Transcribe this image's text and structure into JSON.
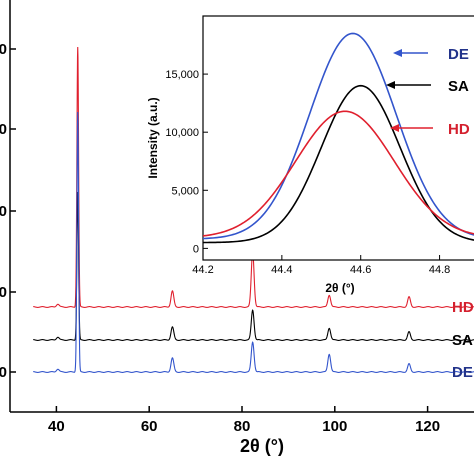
{
  "chart_data": [
    {
      "type": "line",
      "xlabel": "2θ (°)",
      "xlim": [
        30,
        130
      ],
      "x_ticks": [
        "40",
        "60",
        "80",
        "100",
        "120"
      ],
      "x_tick_values": [
        40,
        60,
        80,
        100,
        120
      ],
      "y_tick_fragments": [
        "0",
        "0",
        "0",
        "0",
        "0"
      ],
      "peaks": [
        40.3,
        44.6,
        65.0,
        82.3,
        98.8,
        116.0
      ],
      "series": [
        {
          "name": "HD",
          "color": "#e0202e",
          "offset": 1,
          "heights": [
            3,
            260,
            16,
            55,
            12,
            10
          ]
        },
        {
          "name": "SA",
          "color": "#000000",
          "offset": 0.5,
          "heights": [
            3,
            148,
            13,
            30,
            12,
            8
          ]
        },
        {
          "name": "DE",
          "color": "#3355cc",
          "offset": 0,
          "heights": [
            3,
            260,
            14,
            30,
            18,
            8
          ]
        }
      ],
      "grid": false
    },
    {
      "type": "line",
      "inset": true,
      "xlabel": "2θ (°)",
      "ylabel": "Intensity (a.u.)",
      "xlim": [
        44.2,
        44.9
      ],
      "ylim": [
        -1000,
        20000
      ],
      "x_ticks": [
        "44.2",
        "44.4",
        "44.6",
        "44.8"
      ],
      "x_tick_values": [
        44.2,
        44.4,
        44.6,
        44.8
      ],
      "y_ticks": [
        "0",
        "5,000",
        "10,000",
        "15,000"
      ],
      "y_tick_values": [
        0,
        5000,
        10000,
        15000
      ],
      "series": [
        {
          "name": "DE",
          "color": "#3355cc",
          "peak_x": 44.58,
          "peak_y": 18500,
          "width": 0.11,
          "base": 800
        },
        {
          "name": "SA",
          "color": "#000000",
          "peak_x": 44.6,
          "peak_y": 14000,
          "width": 0.1,
          "base": 500
        },
        {
          "name": "HD",
          "color": "#e0202e",
          "peak_x": 44.56,
          "peak_y": 11800,
          "width": 0.125,
          "base": 900
        }
      ],
      "legend": [
        {
          "text": "DE",
          "color": "#3355cc"
        },
        {
          "text": "SA",
          "color": "#000000"
        },
        {
          "text": "HD",
          "color": "#e0202e"
        }
      ],
      "grid": false
    }
  ]
}
